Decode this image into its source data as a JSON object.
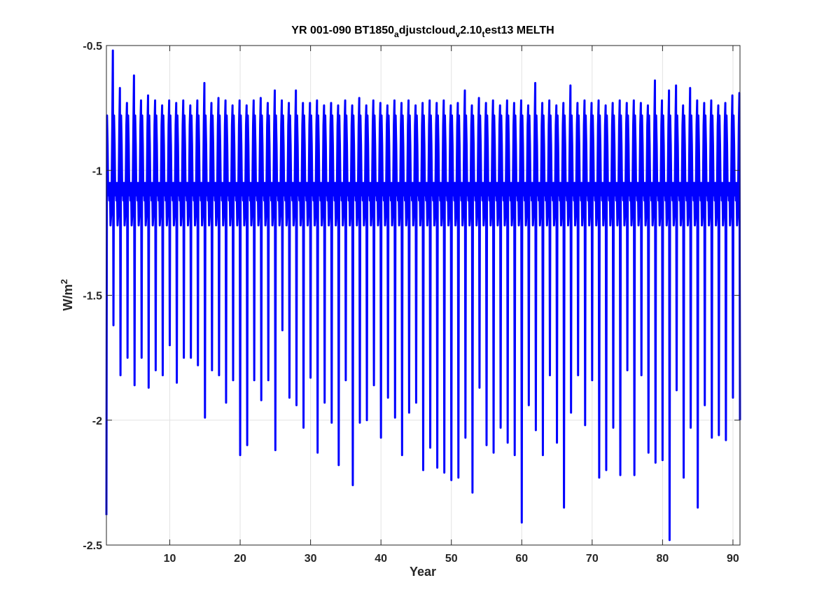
{
  "chart_data": {
    "type": "line",
    "title": {
      "parts": [
        {
          "text": "YR 001-090 BT1850",
          "sub": false
        },
        {
          "text": "a",
          "sub": true
        },
        {
          "text": "djustcloud",
          "sub": false
        },
        {
          "text": "v",
          "sub": true
        },
        {
          "text": "2.10",
          "sub": false
        },
        {
          "text": "t",
          "sub": true
        },
        {
          "text": "est13 MELTH",
          "sub": false
        }
      ]
    },
    "xlabel": "Year",
    "ylabel": {
      "base": "W/m",
      "sup": "2"
    },
    "xlim": [
      1,
      91
    ],
    "ylim": [
      -2.5,
      -0.5
    ],
    "xticks": [
      10,
      20,
      30,
      40,
      50,
      60,
      70,
      80,
      90
    ],
    "yticks": [
      -0.5,
      -1,
      -1.5,
      -2,
      -2.5
    ],
    "ytick_labels": [
      "-0.5",
      "-1",
      "-1.5",
      "-2",
      "-2.5"
    ],
    "grid": true,
    "series": [
      {
        "color": "#0000ff",
        "months_per_year": 12,
        "monthly_profile": [
          -1.0,
          -0.78,
          -0.9,
          -1.1,
          -1.05,
          -1.12,
          -1.05,
          -1.22,
          -1.18,
          -1.05,
          -0.82,
          -0.75
        ],
        "annual_min": [
          -2.38,
          -1.62,
          -1.82,
          -1.75,
          -1.86,
          -1.75,
          -1.87,
          -1.8,
          -1.82,
          -1.7,
          -1.85,
          -1.75,
          -1.75,
          -1.78,
          -1.99,
          -1.8,
          -1.82,
          -1.93,
          -1.84,
          -2.14,
          -2.1,
          -1.84,
          -1.92,
          -1.84,
          -2.12,
          -1.64,
          -1.91,
          -1.94,
          -2.03,
          -1.83,
          -2.13,
          -1.93,
          -2.01,
          -2.18,
          -1.84,
          -2.26,
          -2.01,
          -2.0,
          -1.86,
          -2.07,
          -1.91,
          -1.99,
          -2.14,
          -1.97,
          -1.93,
          -2.2,
          -2.11,
          -2.19,
          -2.21,
          -2.24,
          -2.23,
          -2.07,
          -2.29,
          -1.87,
          -2.1,
          -2.13,
          -2.03,
          -2.09,
          -2.14,
          -2.41,
          -1.94,
          -2.04,
          -2.14,
          -1.82,
          -2.09,
          -2.35,
          -1.97,
          -1.82,
          -2.02,
          -1.84,
          -2.23,
          -2.2,
          -2.03,
          -2.22,
          -1.8,
          -2.22,
          -1.82,
          -2.13,
          -2.17,
          -2.16,
          -2.48,
          -1.88,
          -2.23,
          -2.03,
          -2.35,
          -1.94,
          -2.07,
          -2.06,
          -2.08,
          -1.91
        ],
        "annual_max": [
          -0.52,
          -0.67,
          -0.73,
          -0.62,
          -0.72,
          -0.7,
          -0.72,
          -0.74,
          -0.72,
          -0.73,
          -0.72,
          -0.74,
          -0.72,
          -0.65,
          -0.73,
          -0.71,
          -0.72,
          -0.74,
          -0.72,
          -0.74,
          -0.72,
          -0.71,
          -0.73,
          -0.68,
          -0.72,
          -0.73,
          -0.68,
          -0.73,
          -0.73,
          -0.72,
          -0.74,
          -0.73,
          -0.74,
          -0.72,
          -0.74,
          -0.71,
          -0.74,
          -0.72,
          -0.73,
          -0.74,
          -0.72,
          -0.73,
          -0.72,
          -0.74,
          -0.73,
          -0.72,
          -0.73,
          -0.72,
          -0.74,
          -0.73,
          -0.68,
          -0.74,
          -0.71,
          -0.73,
          -0.72,
          -0.74,
          -0.72,
          -0.73,
          -0.72,
          -0.74,
          -0.65,
          -0.73,
          -0.72,
          -0.74,
          -0.73,
          -0.66,
          -0.73,
          -0.72,
          -0.73,
          -0.72,
          -0.74,
          -0.73,
          -0.72,
          -0.73,
          -0.72,
          -0.73,
          -0.74,
          -0.64,
          -0.72,
          -0.68,
          -0.66,
          -0.74,
          -0.67,
          -0.72,
          -0.73,
          -0.72,
          -0.74,
          -0.73,
          -0.7,
          -0.69
        ]
      }
    ]
  }
}
